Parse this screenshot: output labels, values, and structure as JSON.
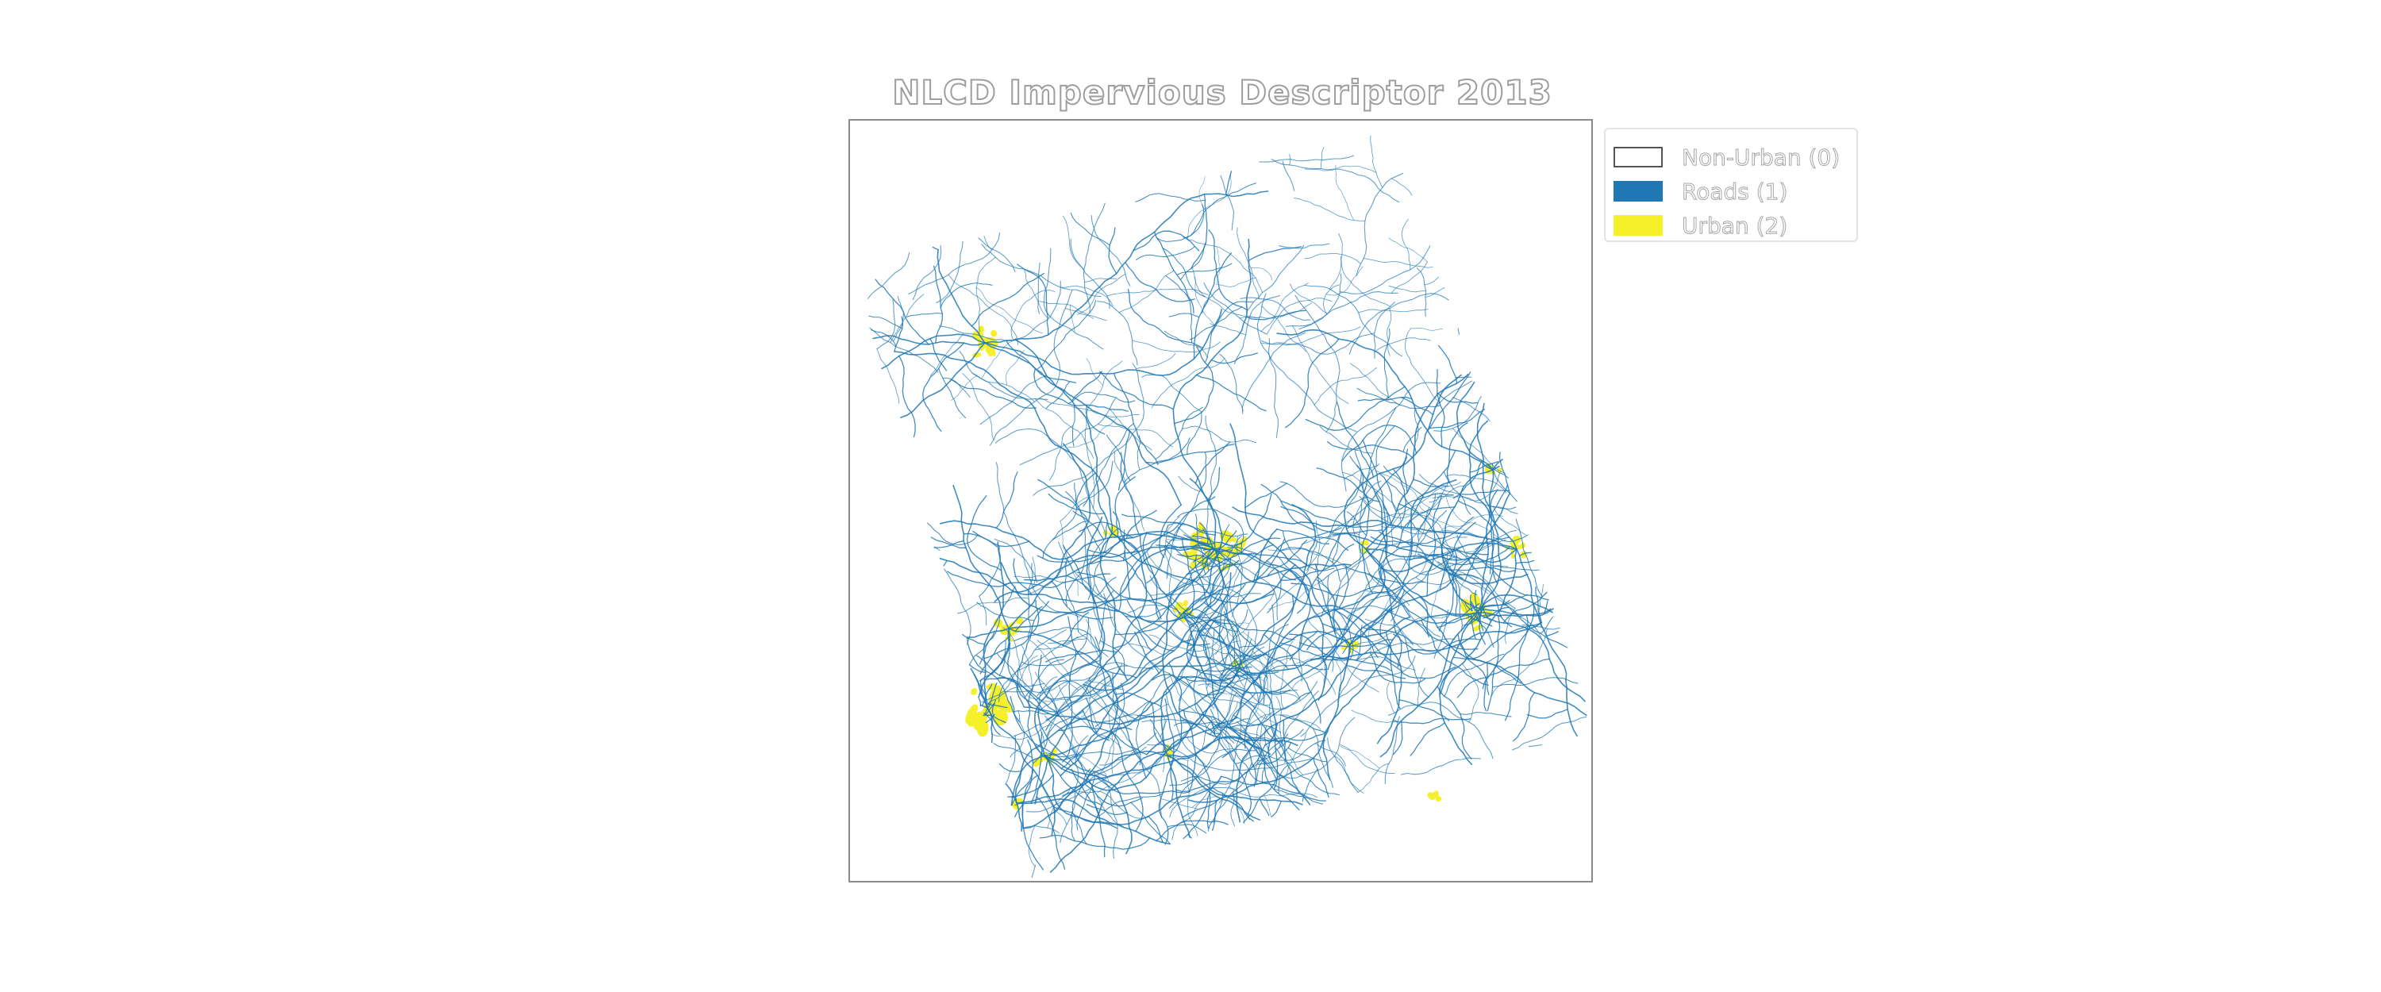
{
  "map": {
    "title": "NLCD Impervious Descriptor 2013",
    "colors": {
      "non_urban": "#ffffff",
      "roads": "#1f77b4",
      "urban": "#f5f02a",
      "frame": "#8c8c8c"
    }
  },
  "legend": {
    "items": [
      {
        "label": "Non-Urban (0)",
        "color": "#ffffff",
        "outline": "#555555"
      },
      {
        "label": "Roads (1)",
        "color": "#1f77b4"
      },
      {
        "label": "Urban (2)",
        "color": "#f5f02a"
      }
    ]
  }
}
